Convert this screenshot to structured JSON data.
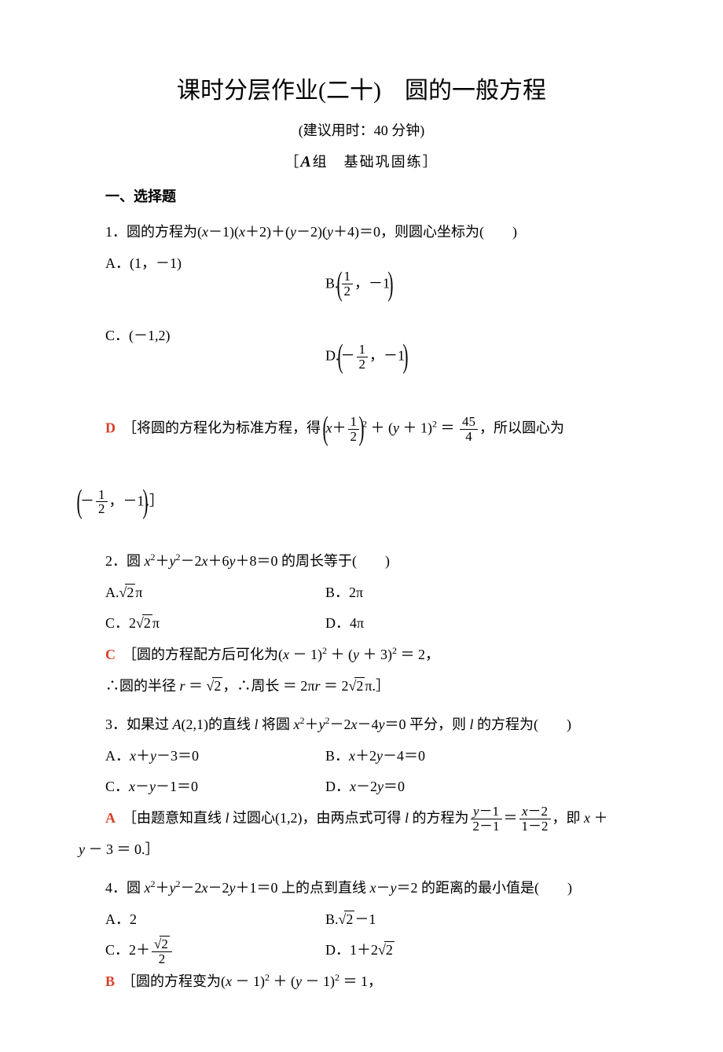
{
  "title": "课时分层作业(二十)　圆的一般方程",
  "subtitle": "(建议用时：40 分钟)",
  "section_header_prefix": "［",
  "section_header_letter": "A",
  "section_header_text": "组　基础巩固练］",
  "section_label": "一、选择题",
  "q1": {
    "text_pre": "1．圆的方程为(",
    "expr1_a": "x",
    "expr1_op1": "－1)(",
    "expr1_b": "x",
    "expr1_op2": "＋2)＋(",
    "expr1_c": "y",
    "expr1_op3": "－2)(",
    "expr1_d": "y",
    "expr1_op4": "＋4)＝0，则圆心坐标为(　　)",
    "choice_a": "A．(1，－1)",
    "choice_b_pre": "B.",
    "choice_b_num": "1",
    "choice_b_den": "2",
    "choice_b_rest": "，－1",
    "choice_c": "C．(－1,2)",
    "choice_d_pre": "D.",
    "choice_d_num": "1",
    "choice_d_den": "2",
    "choice_d_neg": "－",
    "choice_d_rest": "，－1",
    "answer": "D",
    "explain_pre": "［将圆的方程化为标准方程，得 ",
    "explain_x": "x",
    "explain_plus": "＋",
    "explain_num": "1",
    "explain_den": "2",
    "explain_mid": " ＋ (",
    "explain_y": "y",
    "explain_mid2": " ＋ 1)",
    "explain_sq": "2",
    "explain_eq": " ＝ ",
    "explain_rnum": "45",
    "explain_rden": "4",
    "explain_post": "，所以圆心为",
    "explain2_neg": "－",
    "explain2_num": "1",
    "explain2_den": "2",
    "explain2_rest": "，－1",
    "explain2_end": ".］"
  },
  "q2": {
    "text_pre": "2．圆 ",
    "var_x": "x",
    "sq": "2",
    "plus1": "＋",
    "var_y": "y",
    "sq2": "2",
    "rest": "－2",
    "var_x2": "x",
    "rest2": "＋6",
    "var_y2": "y",
    "rest3": "＋8＝0 的周长等于(　　)",
    "choice_a_pre": "A.",
    "choice_a_rad": "2",
    "choice_a_suf": "π",
    "choice_b": "B．2π",
    "choice_c_pre": "C．2",
    "choice_c_rad": "2",
    "choice_c_suf": "π",
    "choice_d": "D．4π",
    "answer": "C",
    "explain1_pre": "［圆的方程配方后可化为(",
    "explain1_x": "x",
    "explain1_m1": " － 1)",
    "explain1_sq": "2",
    "explain1_m2": " ＋ (",
    "explain1_y": "y",
    "explain1_m3": " ＋ 3)",
    "explain1_sq2": "2",
    "explain1_m4": " ＝ 2，",
    "explain2_pre": "∴圆的半径 ",
    "explain2_r": "r",
    "explain2_eq": " ＝ ",
    "explain2_rad": "2",
    "explain2_m": "，∴周长 ＝ 2π",
    "explain2_r2": "r",
    "explain2_eq2": " ＝ 2",
    "explain2_rad2": "2",
    "explain2_end": "π.］"
  },
  "q3": {
    "text_pre": "3．如果过 ",
    "var_A": "A",
    "text_pt": "(2,1)的直线 ",
    "var_l": "l",
    "text_m1": " 将圆 ",
    "var_x": "x",
    "sq": "2",
    "plus": "＋",
    "var_y": "y",
    "sq2": "2",
    "rest": "－2",
    "var_x2": "x",
    "rest2": "－4",
    "var_y2": "y",
    "rest3": "＝0 平分，则 ",
    "var_l2": "l",
    "rest4": " 的方程为(　　)",
    "choice_a_pre": "A．",
    "choice_a_x": "x",
    "choice_a_m": "＋",
    "choice_a_y": "y",
    "choice_a_r": "－3＝0",
    "choice_b_pre": "B．",
    "choice_b_x": "x",
    "choice_b_m": "＋2",
    "choice_b_y": "y",
    "choice_b_r": "－4＝0",
    "choice_c_pre": "C．",
    "choice_c_x": "x",
    "choice_c_m": "－",
    "choice_c_y": "y",
    "choice_c_r": "－1＝0",
    "choice_d_pre": "D．",
    "choice_d_x": "x",
    "choice_d_m": "－2",
    "choice_d_y": "y",
    "choice_d_r": "＝0",
    "answer": "A",
    "explain_pre": "［由题意知直线 ",
    "explain_l": "l",
    "explain_m1": " 过圆心(1,2)，由两点式可得 ",
    "explain_l2": "l",
    "explain_m2": " 的方程为",
    "frac1_num_y": "y",
    "frac1_num_r": "－1",
    "frac1_den": "2－1",
    "explain_eq": "＝",
    "frac2_num_x": "x",
    "frac2_num_r": "－2",
    "frac2_den": "1－2",
    "explain_post": "，即 ",
    "explain_x": "x",
    "explain_plus": " ＋",
    "explain2_y": "y",
    "explain2_end": " － 3 ＝ 0.］"
  },
  "q4": {
    "text_pre": "4．圆 ",
    "var_x": "x",
    "sq": "2",
    "plus": "＋",
    "var_y": "y",
    "sq2": "2",
    "m1": "－2",
    "var_x2": "x",
    "m2": "－2",
    "var_y2": "y",
    "m3": "＋1＝0 上的点到直线 ",
    "var_x3": "x",
    "m4": "－",
    "var_y3": "y",
    "m5": "＝2 的距离的最小值是(　　)",
    "choice_a": "A．2",
    "choice_b_pre": "B.",
    "choice_b_rad": "2",
    "choice_b_suf": "－1",
    "choice_c_pre": "C．2＋",
    "choice_c_num_rad": "2",
    "choice_c_den": "2",
    "choice_d_pre": "D．1＋2",
    "choice_d_rad": "2",
    "answer": "B",
    "explain_pre": "［圆的方程变为(",
    "explain_x": "x",
    "explain_m1": " － 1)",
    "explain_sq": "2",
    "explain_m2": " ＋ (",
    "explain_y": "y",
    "explain_m3": " － 1)",
    "explain_sq2": "2",
    "explain_m4": " ＝ 1，"
  }
}
